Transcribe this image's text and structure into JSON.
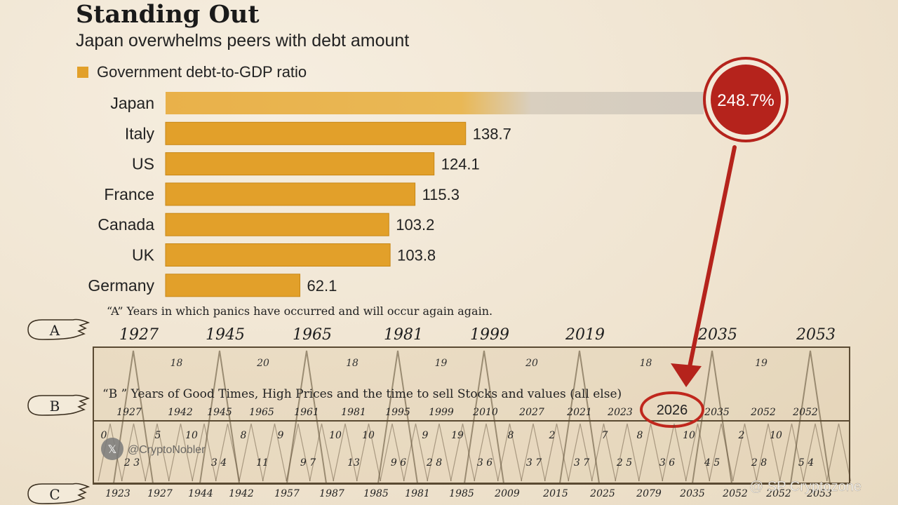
{
  "title": "Standing Out",
  "subtitle": "Japan overwhelms peers with debt amount",
  "chart_data": {
    "type": "bar",
    "legend": "Government debt-to-GDP ratio",
    "categories": [
      "Japan",
      "Italy",
      "US",
      "France",
      "Canada",
      "UK",
      "Germany"
    ],
    "values": [
      248.7,
      138.7,
      124.1,
      115.3,
      103.2,
      103.8,
      62.1
    ],
    "value_labels": [
      "248.7%",
      "138.7",
      "124.1",
      "115.3",
      "103.2",
      "103.8",
      "62.1"
    ],
    "xlim": [
      0,
      270
    ]
  },
  "colors": {
    "bar": "#e2a02a",
    "bar_edge": "#c88614",
    "highlight": "#b5231c",
    "ink": "#5a4a32"
  },
  "cycle": {
    "row_a_caption": "“A” Years in which panics have occurred and will occur again again.",
    "row_b_caption": "“B ” Years of Good Times, High Prices and the time to sell Stocks and values (all else)",
    "hand_labels": [
      "A",
      "B",
      "C"
    ],
    "panic_years": [
      "1927",
      "1945",
      "1965",
      "1981",
      "1999",
      "2019",
      "2035",
      "2053"
    ],
    "panic_intervals": [
      "18",
      "20",
      "18",
      "19",
      "20",
      "18",
      "19"
    ],
    "b_years": [
      "1927",
      "1942",
      "1945",
      "1965",
      "1961",
      "1981",
      "1995",
      "1999",
      "2010",
      "2027",
      "2021",
      "2023",
      "2026",
      "2035",
      "2052",
      "2052"
    ],
    "highlight_year": "2026",
    "lower_numbers": [
      "0",
      "5",
      "10",
      "8",
      "9",
      "10",
      "10",
      "9",
      "19",
      "8",
      "2",
      "7",
      "8",
      "10",
      "2",
      "10"
    ],
    "bottom_numbers": [
      "2 3",
      "3 4",
      "11",
      "9 7",
      "13",
      "9 6",
      "2 8",
      "3 6",
      "3 7",
      "3 7",
      "2 5",
      "3 6",
      "4 5",
      "2 8",
      "5 4"
    ],
    "c_years": [
      "1923",
      "1927",
      "1944",
      "1942",
      "1957",
      "1987",
      "1985",
      "1981",
      "1985",
      "2009",
      "2015",
      "2025",
      "2079",
      "2035",
      "2052",
      "2052",
      "2053"
    ]
  },
  "watermarks": {
    "left": "@CryptoNobler",
    "right": "@ SP Cryptozone"
  }
}
